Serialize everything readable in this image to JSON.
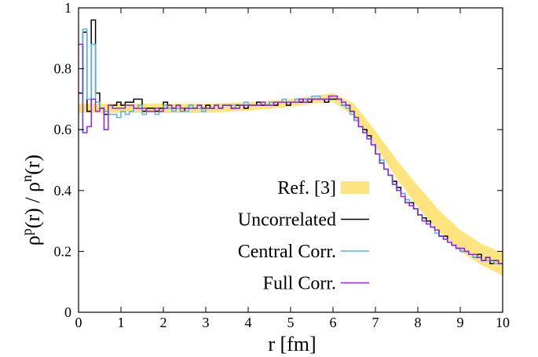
{
  "chart_data": {
    "type": "line",
    "xlabel": "r [fm]",
    "ylabel": {
      "base1": "ρ",
      "sup1": "p",
      "mid": "(r) / ρ",
      "sup2": "n",
      "end": "(r)"
    },
    "xlim": [
      0,
      10
    ],
    "ylim": [
      0,
      1
    ],
    "xticks": [
      "0",
      "1",
      "2",
      "3",
      "4",
      "5",
      "6",
      "7",
      "8",
      "9",
      "10"
    ],
    "yticks": [
      "0",
      "0.2",
      "0.4",
      "0.6",
      "0.8",
      "1"
    ],
    "legend_position": "lower-left (inside plot)",
    "reference_band": {
      "name": "Ref. [3]",
      "color": "#fde47f",
      "r": [
        0,
        1,
        2,
        3,
        4,
        5,
        5.5,
        6,
        6.5,
        7,
        7.5,
        8,
        8.5,
        9,
        9.5,
        10
      ],
      "lower": [
        0.655,
        0.655,
        0.655,
        0.655,
        0.662,
        0.675,
        0.685,
        0.69,
        0.645,
        0.545,
        0.44,
        0.345,
        0.265,
        0.2,
        0.155,
        0.12
      ],
      "upper": [
        0.685,
        0.685,
        0.685,
        0.685,
        0.69,
        0.7,
        0.71,
        0.72,
        0.685,
        0.595,
        0.5,
        0.415,
        0.335,
        0.27,
        0.225,
        0.195
      ]
    },
    "bin_width": 0.1,
    "series": [
      {
        "name": "Uncorrelated",
        "color": "#000000",
        "values": [
          0.72,
          0.92,
          0.66,
          0.96,
          0.72,
          0.67,
          0.65,
          0.68,
          0.68,
          0.69,
          0.68,
          0.69,
          0.69,
          0.7,
          0.7,
          0.66,
          0.67,
          0.67,
          0.66,
          0.67,
          0.69,
          0.68,
          0.67,
          0.68,
          0.66,
          0.67,
          0.68,
          0.67,
          0.68,
          0.67,
          0.68,
          0.67,
          0.68,
          0.67,
          0.68,
          0.68,
          0.67,
          0.68,
          0.68,
          0.67,
          0.68,
          0.68,
          0.69,
          0.68,
          0.68,
          0.69,
          0.68,
          0.69,
          0.69,
          0.68,
          0.69,
          0.69,
          0.69,
          0.7,
          0.69,
          0.7,
          0.7,
          0.7,
          0.69,
          0.7,
          0.7,
          0.7,
          0.68,
          0.68,
          0.66,
          0.63,
          0.61,
          0.6,
          0.58,
          0.55,
          0.52,
          0.49,
          0.47,
          0.45,
          0.43,
          0.41,
          0.39,
          0.36,
          0.36,
          0.34,
          0.32,
          0.31,
          0.3,
          0.28,
          0.27,
          0.25,
          0.25,
          0.23,
          0.22,
          0.21,
          0.2,
          0.2,
          0.19,
          0.18,
          0.19,
          0.17,
          0.18,
          0.16,
          0.17,
          0.16
        ]
      },
      {
        "name": "Central Corr.",
        "color": "#56b4e9",
        "values": [
          0.6,
          0.93,
          0.7,
          0.88,
          0.69,
          0.67,
          0.66,
          0.65,
          0.65,
          0.64,
          0.66,
          0.65,
          0.66,
          0.67,
          0.68,
          0.65,
          0.66,
          0.66,
          0.65,
          0.66,
          0.68,
          0.67,
          0.66,
          0.67,
          0.66,
          0.66,
          0.68,
          0.67,
          0.67,
          0.66,
          0.67,
          0.67,
          0.68,
          0.67,
          0.68,
          0.68,
          0.68,
          0.67,
          0.68,
          0.69,
          0.68,
          0.68,
          0.68,
          0.69,
          0.68,
          0.69,
          0.69,
          0.69,
          0.7,
          0.69,
          0.69,
          0.7,
          0.7,
          0.7,
          0.7,
          0.71,
          0.71,
          0.7,
          0.7,
          0.71,
          0.71,
          0.7,
          0.68,
          0.67,
          0.65,
          0.63,
          0.61,
          0.59,
          0.57,
          0.55,
          0.52,
          0.5,
          0.47,
          0.45,
          0.42,
          0.4,
          0.39,
          0.37,
          0.35,
          0.34,
          0.32,
          0.3,
          0.29,
          0.28,
          0.26,
          0.25,
          0.24,
          0.23,
          0.22,
          0.21,
          0.2,
          0.2,
          0.19,
          0.18,
          0.18,
          0.17,
          0.17,
          0.17,
          0.16,
          0.16
        ]
      },
      {
        "name": "Full Corr.",
        "color": "#8a2be2",
        "values": [
          0.88,
          0.59,
          0.61,
          0.7,
          0.66,
          0.67,
          0.6,
          0.68,
          0.67,
          0.67,
          0.67,
          0.68,
          0.68,
          0.67,
          0.67,
          0.67,
          0.66,
          0.66,
          0.67,
          0.66,
          0.67,
          0.68,
          0.67,
          0.68,
          0.67,
          0.67,
          0.67,
          0.67,
          0.68,
          0.67,
          0.67,
          0.67,
          0.68,
          0.67,
          0.68,
          0.68,
          0.67,
          0.67,
          0.68,
          0.68,
          0.68,
          0.68,
          0.68,
          0.69,
          0.68,
          0.68,
          0.69,
          0.69,
          0.69,
          0.69,
          0.69,
          0.69,
          0.7,
          0.69,
          0.7,
          0.7,
          0.7,
          0.7,
          0.7,
          0.71,
          0.71,
          0.7,
          0.69,
          0.68,
          0.66,
          0.64,
          0.61,
          0.59,
          0.57,
          0.55,
          0.52,
          0.49,
          0.47,
          0.45,
          0.42,
          0.4,
          0.38,
          0.36,
          0.35,
          0.34,
          0.32,
          0.3,
          0.29,
          0.28,
          0.27,
          0.25,
          0.24,
          0.23,
          0.22,
          0.21,
          0.21,
          0.2,
          0.19,
          0.19,
          0.18,
          0.17,
          0.18,
          0.17,
          0.17,
          0.16
        ]
      }
    ]
  }
}
